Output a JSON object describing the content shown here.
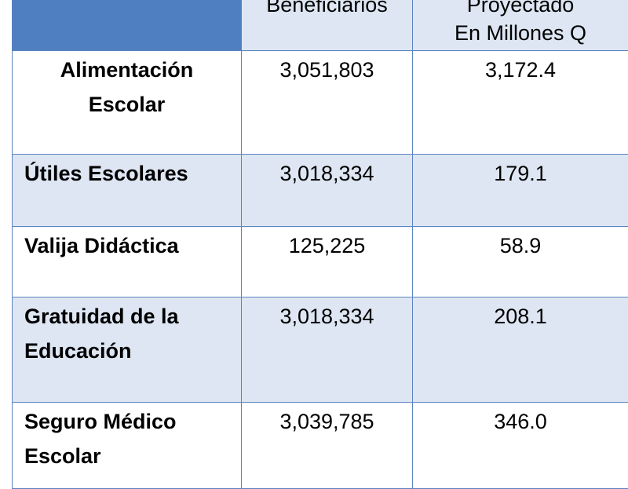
{
  "table": {
    "headers": [
      "",
      "Beneficiarios",
      "Proyectado En Millones Q"
    ],
    "header_lines": {
      "beneficiarios": "Beneficiarios",
      "proyectado_1": "Proyectado",
      "proyectado_2": "En Millones Q"
    },
    "rows": [
      {
        "programa_lines": [
          "Alimentación",
          "Escolar"
        ],
        "beneficiarios": "3,051,803",
        "monto": "3,172.4"
      },
      {
        "programa_lines": [
          "Útiles Escolares"
        ],
        "beneficiarios": "3,018,334",
        "monto": "179.1"
      },
      {
        "programa_lines": [
          "Valija Didáctica"
        ],
        "beneficiarios": "125,225",
        "monto": "58.9"
      },
      {
        "programa_lines": [
          "Gratuidad de la",
          "Educación"
        ],
        "beneficiarios": "3,018,334",
        "monto": "208.1"
      },
      {
        "programa_lines": [
          "Seguro Médico",
          "Escolar"
        ],
        "beneficiarios": "3,039,785",
        "monto": "346.0"
      }
    ]
  },
  "colors": {
    "header_blue": "#4f7fc0",
    "band": "#dde6f2",
    "border": "#5b83bf"
  }
}
